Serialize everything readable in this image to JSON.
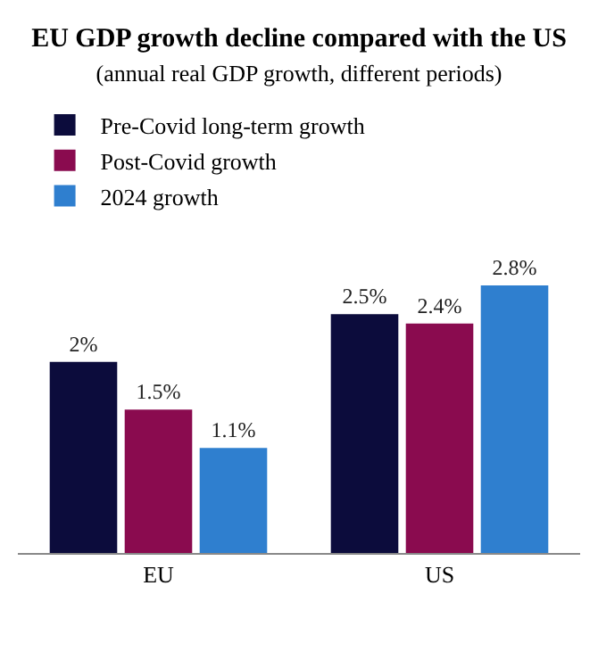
{
  "chart_data": {
    "type": "bar",
    "title": "EU GDP growth decline compared with the US",
    "subtitle": "(annual real GDP growth, different periods)",
    "categories": [
      "EU",
      "US"
    ],
    "series": [
      {
        "name": "Pre-Covid long-term growth",
        "color": "#0c0c3c",
        "values": [
          2,
          2.5
        ],
        "value_labels": [
          "2%",
          "2.5%"
        ]
      },
      {
        "name": "Post-Covid growth",
        "color": "#8a0b4f",
        "values": [
          1.5,
          2.4
        ],
        "value_labels": [
          "1.5%",
          "2.4%"
        ]
      },
      {
        "name": "2024 growth",
        "color": "#2f7fcf",
        "values": [
          1.1,
          2.8
        ],
        "value_labels": [
          "1.1%",
          "2.8%"
        ]
      }
    ],
    "legend": "top left",
    "grid": false
  }
}
